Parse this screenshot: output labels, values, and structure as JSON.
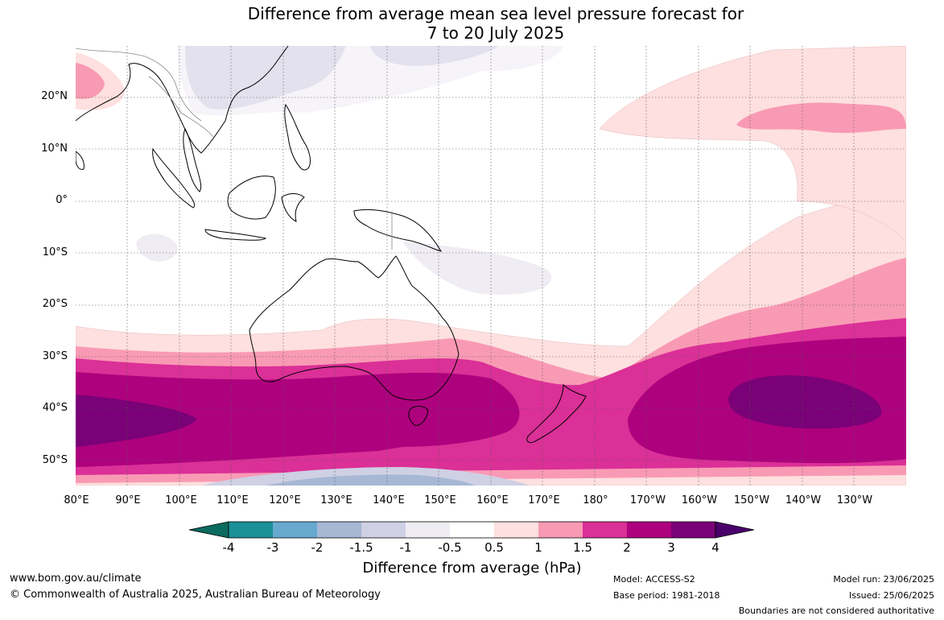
{
  "title_line1": "Difference from average mean sea level pressure forecast for",
  "title_line2": "7 to 20 July 2025",
  "lat_labels": [
    "20°N",
    "10°N",
    "0°",
    "10°S",
    "20°S",
    "30°S",
    "40°S",
    "50°S"
  ],
  "lon_labels": [
    "80°E",
    "90°E",
    "100°E",
    "110°E",
    "120°E",
    "130°E",
    "140°E",
    "150°E",
    "160°E",
    "170°E",
    "180°",
    "170°W",
    "160°W",
    "150°W",
    "140°W",
    "130°W"
  ],
  "colorbar": {
    "title": "Difference from average (hPa)",
    "ticks": [
      "-4",
      "-3",
      "-2",
      "-1.5",
      "-1",
      "-0.5",
      "0.5",
      "1",
      "1.5",
      "2",
      "3",
      "4"
    ],
    "colors": [
      "#0b6b5e",
      "#1a9097",
      "#67a9cf",
      "#a6b8d4",
      "#cfd0e4",
      "#f0ecf3",
      "#ffffff",
      "#fde0df",
      "#f99ab4",
      "#db3097",
      "#ae017e",
      "#7a0177",
      "#49006a"
    ]
  },
  "footer": {
    "website": "www.bom.gov.au/climate",
    "copyright": "© Commonwealth of Australia 2025, Australian Bureau of Meteorology",
    "model": "Model: ACCESS-S2",
    "base_period": "Base period: 1981-2018",
    "model_run": "Model run: 23/06/2025",
    "issued": "Issued: 25/06/2025",
    "disclaimer": "Boundaries are not considered authoritative"
  }
}
